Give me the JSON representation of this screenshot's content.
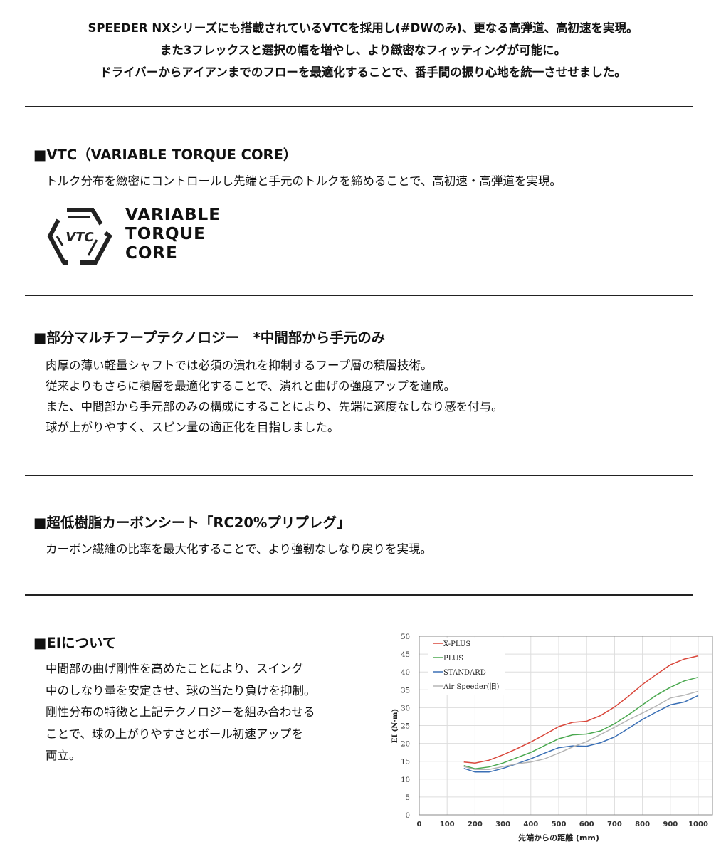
{
  "intro": [
    "SPEEDER NXシリーズにも搭載されているVTCを採用し(#DWのみ)、更なる高弾道、高初速を実現。",
    "また3フレックスと選択の幅を増やし、より緻密なフィッティングが可能に。",
    "ドライバーからアイアンまでのフローを最適化することで、番手間の振り心地を統一させせました。"
  ],
  "sections": [
    {
      "title": "■VTC（VARIABLE TORQUE CORE）",
      "body": [
        "トルク分布を緻密にコントロールし先端と手元のトルクを締めることで、高初速・高弾道を実現。"
      ]
    },
    {
      "title": "■部分マルチフープテクノロジー　*中間部から手元のみ",
      "body": [
        "肉厚の薄い軽量シャフトでは必須の潰れを抑制するフープ層の積層技術。",
        "従来よりもさらに積層を最適化することで、潰れと曲げの強度アップを達成。",
        "また、中間部から手元部のみの構成にすることにより、先端に適度なしなり感を付与。",
        "球が上がりやすく、スピン量の適正化を目指しました。"
      ]
    },
    {
      "title": "■超低樹脂カーボンシート「RC20%プリプレグ」",
      "body": [
        "カーボン繊維の比率を最大化することで、より強靭なしなり戻りを実現。"
      ]
    },
    {
      "title": "■EIについて",
      "body": [
        "中間部の曲げ剛性を高めたことにより、スイング",
        "中のしなり量を安定させ、球の当たり負けを抑制。",
        "剛性分布の特徴と上記テクノロジーを組み合わせる",
        "ことで、球の上がりやすさとボール初速アップを",
        "両立。"
      ]
    }
  ],
  "logo": {
    "mark": "VTC",
    "lines": [
      "VARIABLE",
      "TORQUE",
      "CORE"
    ]
  },
  "chart_data": {
    "type": "line",
    "xlabel": "先端からの距離 (mm)",
    "ylabel": "EI (N·m)",
    "xlim": [
      0,
      1000
    ],
    "ylim": [
      0,
      50
    ],
    "xticks": [
      0,
      100,
      200,
      300,
      400,
      500,
      600,
      700,
      800,
      900,
      1000
    ],
    "yticks": [
      0,
      5,
      10,
      15,
      20,
      25,
      30,
      35,
      40,
      45,
      50
    ],
    "grid": true,
    "legend": "top-left",
    "x": [
      160,
      200,
      250,
      300,
      350,
      400,
      450,
      500,
      550,
      600,
      650,
      700,
      750,
      800,
      850,
      900,
      950,
      1000
    ],
    "series": [
      {
        "name": "X-PLUS",
        "color": "#d9473b",
        "values": [
          14.8,
          14.5,
          15.3,
          16.8,
          18.5,
          20.4,
          22.5,
          24.7,
          25.9,
          26.2,
          27.8,
          30.2,
          33.2,
          36.5,
          39.3,
          42,
          43.6,
          44.5
        ]
      },
      {
        "name": "PLUS",
        "color": "#4aa84f",
        "values": [
          13.8,
          12.9,
          13.4,
          14.5,
          16,
          17.5,
          19.4,
          21.3,
          22.4,
          22.6,
          23.5,
          25.5,
          28,
          30.8,
          33.5,
          35.7,
          37.5,
          38.5
        ]
      },
      {
        "name": "STANDARD",
        "color": "#3a6fb5",
        "values": [
          13,
          12,
          12,
          13,
          14.3,
          15.7,
          17.3,
          18.8,
          19.3,
          19.2,
          20.2,
          21.8,
          24.2,
          26.7,
          28.8,
          30.8,
          31.6,
          33.4
        ]
      },
      {
        "name": "Air Speeder(旧)",
        "color": "#b5b5b5",
        "values": [
          13.5,
          12.7,
          12.7,
          13.5,
          14.3,
          14.8,
          15.7,
          17.3,
          19,
          20.5,
          22.5,
          24.5,
          26.6,
          28.5,
          30.5,
          32.7,
          33.5,
          34.6
        ]
      }
    ]
  }
}
